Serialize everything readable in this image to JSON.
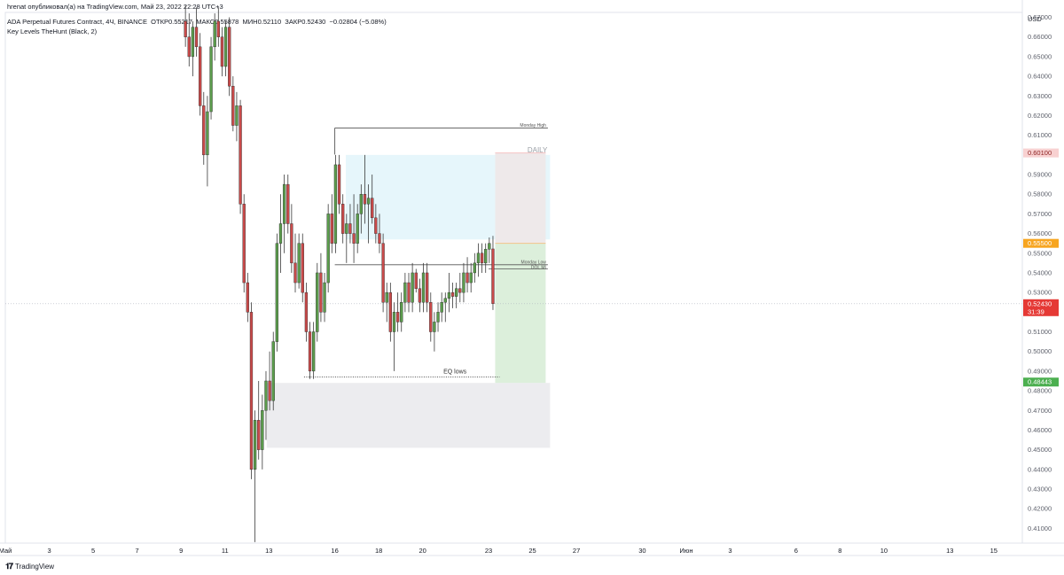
{
  "header": {
    "publisher_line": "hrenat опубликовал(а) на TradingView.com, Май 23, 2022 22:28 UTC+3",
    "symbol_line": "ADA Perpetual Futures Contract, 4Ч, BINANCE",
    "open_label": "ОТКР",
    "open_value": "0.55217",
    "high_label": "МАКС",
    "high_value": "0.55878",
    "low_label": "МИН",
    "low_value": "0.52110",
    "close_label": "ЗАКР",
    "close_value": "0.52430",
    "change": "−0.02804 (−5.08%)",
    "indicator_line": "Key Levels TheHunt (Black, 2)"
  },
  "footer": {
    "brand": "TradingView"
  },
  "colors": {
    "up": "#5b9c4c",
    "down": "#c94a4a",
    "wick": "#3a3a3a",
    "daily_zone": "#e6f6fb",
    "demand_zone": "#ececef",
    "target_zone": "#dcefdb",
    "stop_zone": "#eee9ea",
    "last_price_bg": "#e53935",
    "orange_tag": "#f7a520",
    "green_tag": "#4caf50",
    "pink_tag": "#f8d1d1"
  },
  "chart_data": {
    "type": "candlestick",
    "timeframe": "4Ч",
    "currency": "USD",
    "ylim": [
      0.4025,
      0.6725
    ],
    "y_ticks": [
      "0.67000",
      "0.66000",
      "0.65000",
      "0.64000",
      "0.63000",
      "0.62000",
      "0.61000",
      "0.60000",
      "0.59000",
      "0.58000",
      "0.57000",
      "0.56000",
      "0.55000",
      "0.54000",
      "0.53000",
      "0.52000",
      "0.51000",
      "0.50000",
      "0.49000",
      "0.48000",
      "0.47000",
      "0.46000",
      "0.45000",
      "0.44000",
      "0.43000",
      "0.42000",
      "0.41000"
    ],
    "x_ticks": [
      {
        "label": "Май",
        "day": 1
      },
      {
        "label": "3",
        "day": 3
      },
      {
        "label": "5",
        "day": 5
      },
      {
        "label": "7",
        "day": 7
      },
      {
        "label": "9",
        "day": 9
      },
      {
        "label": "11",
        "day": 11
      },
      {
        "label": "13",
        "day": 13
      },
      {
        "label": "16",
        "day": 16
      },
      {
        "label": "18",
        "day": 18
      },
      {
        "label": "20",
        "day": 20
      },
      {
        "label": "23",
        "day": 23
      },
      {
        "label": "25",
        "day": 25
      },
      {
        "label": "27",
        "day": 27
      },
      {
        "label": "30",
        "day": 30
      },
      {
        "label": "Июн",
        "day": 32
      },
      {
        "label": "3",
        "day": 34
      },
      {
        "label": "6",
        "day": 37
      },
      {
        "label": "8",
        "day": 39
      },
      {
        "label": "10",
        "day": 41
      },
      {
        "label": "13",
        "day": 44
      },
      {
        "label": "15",
        "day": 46
      }
    ],
    "x_range_days": [
      1,
      47.3
    ],
    "candles": [
      {
        "d": 9.2,
        "o": 0.668,
        "h": 0.676,
        "l": 0.655,
        "c": 0.66
      },
      {
        "d": 9.367,
        "o": 0.66,
        "h": 0.672,
        "l": 0.645,
        "c": 0.65
      },
      {
        "d": 9.533,
        "o": 0.65,
        "h": 0.668,
        "l": 0.64,
        "c": 0.665
      },
      {
        "d": 9.7,
        "o": 0.665,
        "h": 0.675,
        "l": 0.65,
        "c": 0.655
      },
      {
        "d": 9.867,
        "o": 0.655,
        "h": 0.662,
        "l": 0.62,
        "c": 0.625
      },
      {
        "d": 10.033,
        "o": 0.625,
        "h": 0.632,
        "l": 0.595,
        "c": 0.6
      },
      {
        "d": 10.2,
        "o": 0.6,
        "h": 0.63,
        "l": 0.584,
        "c": 0.622
      },
      {
        "d": 10.367,
        "o": 0.622,
        "h": 0.66,
        "l": 0.618,
        "c": 0.655
      },
      {
        "d": 10.533,
        "o": 0.655,
        "h": 0.672,
        "l": 0.648,
        "c": 0.668
      },
      {
        "d": 10.7,
        "o": 0.668,
        "h": 0.675,
        "l": 0.655,
        "c": 0.66
      },
      {
        "d": 10.867,
        "o": 0.66,
        "h": 0.665,
        "l": 0.64,
        "c": 0.645
      },
      {
        "d": 11.033,
        "o": 0.645,
        "h": 0.668,
        "l": 0.64,
        "c": 0.665
      },
      {
        "d": 11.2,
        "o": 0.665,
        "h": 0.67,
        "l": 0.63,
        "c": 0.635
      },
      {
        "d": 11.367,
        "o": 0.635,
        "h": 0.64,
        "l": 0.612,
        "c": 0.615
      },
      {
        "d": 11.533,
        "o": 0.615,
        "h": 0.632,
        "l": 0.607,
        "c": 0.625
      },
      {
        "d": 11.7,
        "o": 0.625,
        "h": 0.628,
        "l": 0.57,
        "c": 0.575
      },
      {
        "d": 11.867,
        "o": 0.575,
        "h": 0.58,
        "l": 0.53,
        "c": 0.535
      },
      {
        "d": 12.033,
        "o": 0.535,
        "h": 0.54,
        "l": 0.515,
        "c": 0.52
      },
      {
        "d": 12.2,
        "o": 0.52,
        "h": 0.525,
        "l": 0.435,
        "c": 0.44
      },
      {
        "d": 12.367,
        "o": 0.44,
        "h": 0.47,
        "l": 0.403,
        "c": 0.465
      },
      {
        "d": 12.533,
        "o": 0.465,
        "h": 0.485,
        "l": 0.445,
        "c": 0.45
      },
      {
        "d": 12.7,
        "o": 0.45,
        "h": 0.478,
        "l": 0.44,
        "c": 0.47
      },
      {
        "d": 12.867,
        "o": 0.47,
        "h": 0.49,
        "l": 0.455,
        "c": 0.485
      },
      {
        "d": 13.033,
        "o": 0.485,
        "h": 0.5,
        "l": 0.47,
        "c": 0.475
      },
      {
        "d": 13.2,
        "o": 0.475,
        "h": 0.51,
        "l": 0.47,
        "c": 0.505
      },
      {
        "d": 13.367,
        "o": 0.505,
        "h": 0.56,
        "l": 0.5,
        "c": 0.555
      },
      {
        "d": 13.533,
        "o": 0.555,
        "h": 0.58,
        "l": 0.54,
        "c": 0.565
      },
      {
        "d": 13.7,
        "o": 0.565,
        "h": 0.59,
        "l": 0.55,
        "c": 0.585
      },
      {
        "d": 13.867,
        "o": 0.585,
        "h": 0.59,
        "l": 0.56,
        "c": 0.565
      },
      {
        "d": 14.033,
        "o": 0.565,
        "h": 0.575,
        "l": 0.54,
        "c": 0.545
      },
      {
        "d": 14.2,
        "o": 0.545,
        "h": 0.56,
        "l": 0.53,
        "c": 0.535
      },
      {
        "d": 14.367,
        "o": 0.535,
        "h": 0.56,
        "l": 0.532,
        "c": 0.555
      },
      {
        "d": 14.533,
        "o": 0.555,
        "h": 0.56,
        "l": 0.525,
        "c": 0.53
      },
      {
        "d": 14.7,
        "o": 0.53,
        "h": 0.535,
        "l": 0.505,
        "c": 0.51
      },
      {
        "d": 14.867,
        "o": 0.51,
        "h": 0.515,
        "l": 0.486,
        "c": 0.49
      },
      {
        "d": 15.033,
        "o": 0.49,
        "h": 0.515,
        "l": 0.486,
        "c": 0.51
      },
      {
        "d": 15.2,
        "o": 0.51,
        "h": 0.545,
        "l": 0.505,
        "c": 0.54
      },
      {
        "d": 15.367,
        "o": 0.54,
        "h": 0.55,
        "l": 0.515,
        "c": 0.52
      },
      {
        "d": 15.533,
        "o": 0.52,
        "h": 0.54,
        "l": 0.515,
        "c": 0.535
      },
      {
        "d": 15.7,
        "o": 0.535,
        "h": 0.575,
        "l": 0.53,
        "c": 0.57
      },
      {
        "d": 15.867,
        "o": 0.57,
        "h": 0.58,
        "l": 0.55,
        "c": 0.555
      },
      {
        "d": 16.033,
        "o": 0.555,
        "h": 0.6,
        "l": 0.55,
        "c": 0.595
      },
      {
        "d": 16.2,
        "o": 0.595,
        "h": 0.6,
        "l": 0.57,
        "c": 0.575
      },
      {
        "d": 16.367,
        "o": 0.575,
        "h": 0.58,
        "l": 0.555,
        "c": 0.56
      },
      {
        "d": 16.533,
        "o": 0.56,
        "h": 0.57,
        "l": 0.545,
        "c": 0.565
      },
      {
        "d": 16.7,
        "o": 0.565,
        "h": 0.575,
        "l": 0.555,
        "c": 0.56
      },
      {
        "d": 16.867,
        "o": 0.56,
        "h": 0.58,
        "l": 0.545,
        "c": 0.555
      },
      {
        "d": 17.033,
        "o": 0.555,
        "h": 0.575,
        "l": 0.55,
        "c": 0.57
      },
      {
        "d": 17.2,
        "o": 0.57,
        "h": 0.585,
        "l": 0.56,
        "c": 0.58
      },
      {
        "d": 17.367,
        "o": 0.58,
        "h": 0.6,
        "l": 0.565,
        "c": 0.575
      },
      {
        "d": 17.533,
        "o": 0.575,
        "h": 0.585,
        "l": 0.555,
        "c": 0.578
      },
      {
        "d": 17.7,
        "o": 0.578,
        "h": 0.59,
        "l": 0.565,
        "c": 0.568
      },
      {
        "d": 17.867,
        "o": 0.568,
        "h": 0.575,
        "l": 0.555,
        "c": 0.56
      },
      {
        "d": 18.033,
        "o": 0.56,
        "h": 0.57,
        "l": 0.55,
        "c": 0.555
      },
      {
        "d": 18.2,
        "o": 0.555,
        "h": 0.56,
        "l": 0.52,
        "c": 0.525
      },
      {
        "d": 18.367,
        "o": 0.525,
        "h": 0.535,
        "l": 0.515,
        "c": 0.53
      },
      {
        "d": 18.533,
        "o": 0.53,
        "h": 0.535,
        "l": 0.505,
        "c": 0.51
      },
      {
        "d": 18.7,
        "o": 0.51,
        "h": 0.525,
        "l": 0.49,
        "c": 0.52
      },
      {
        "d": 18.867,
        "o": 0.52,
        "h": 0.53,
        "l": 0.51,
        "c": 0.515
      },
      {
        "d": 19.033,
        "o": 0.515,
        "h": 0.53,
        "l": 0.51,
        "c": 0.525
      },
      {
        "d": 19.2,
        "o": 0.525,
        "h": 0.54,
        "l": 0.52,
        "c": 0.535
      },
      {
        "d": 19.367,
        "o": 0.535,
        "h": 0.54,
        "l": 0.52,
        "c": 0.525
      },
      {
        "d": 19.533,
        "o": 0.525,
        "h": 0.545,
        "l": 0.52,
        "c": 0.54
      },
      {
        "d": 19.7,
        "o": 0.54,
        "h": 0.542,
        "l": 0.53,
        "c": 0.532
      },
      {
        "d": 19.867,
        "o": 0.532,
        "h": 0.537,
        "l": 0.52,
        "c": 0.525
      },
      {
        "d": 20.033,
        "o": 0.525,
        "h": 0.545,
        "l": 0.52,
        "c": 0.54
      },
      {
        "d": 20.2,
        "o": 0.54,
        "h": 0.545,
        "l": 0.52,
        "c": 0.525
      },
      {
        "d": 20.367,
        "o": 0.525,
        "h": 0.53,
        "l": 0.505,
        "c": 0.51
      },
      {
        "d": 20.533,
        "o": 0.51,
        "h": 0.52,
        "l": 0.5,
        "c": 0.515
      },
      {
        "d": 20.7,
        "o": 0.515,
        "h": 0.525,
        "l": 0.51,
        "c": 0.52
      },
      {
        "d": 20.867,
        "o": 0.52,
        "h": 0.53,
        "l": 0.515,
        "c": 0.525
      },
      {
        "d": 21.033,
        "o": 0.525,
        "h": 0.53,
        "l": 0.515,
        "c": 0.527
      },
      {
        "d": 21.2,
        "o": 0.527,
        "h": 0.54,
        "l": 0.52,
        "c": 0.53
      },
      {
        "d": 21.367,
        "o": 0.53,
        "h": 0.535,
        "l": 0.522,
        "c": 0.528
      },
      {
        "d": 21.533,
        "o": 0.528,
        "h": 0.535,
        "l": 0.522,
        "c": 0.532
      },
      {
        "d": 21.7,
        "o": 0.532,
        "h": 0.54,
        "l": 0.525,
        "c": 0.53
      },
      {
        "d": 21.867,
        "o": 0.53,
        "h": 0.545,
        "l": 0.525,
        "c": 0.54
      },
      {
        "d": 22.033,
        "o": 0.54,
        "h": 0.548,
        "l": 0.53,
        "c": 0.535
      },
      {
        "d": 22.2,
        "o": 0.535,
        "h": 0.545,
        "l": 0.53,
        "c": 0.54
      },
      {
        "d": 22.367,
        "o": 0.54,
        "h": 0.55,
        "l": 0.535,
        "c": 0.545
      },
      {
        "d": 22.533,
        "o": 0.545,
        "h": 0.555,
        "l": 0.538,
        "c": 0.55
      },
      {
        "d": 22.7,
        "o": 0.55,
        "h": 0.555,
        "l": 0.54,
        "c": 0.545
      },
      {
        "d": 22.867,
        "o": 0.545,
        "h": 0.555,
        "l": 0.54,
        "c": 0.552
      },
      {
        "d": 23.033,
        "o": 0.552,
        "h": 0.558,
        "l": 0.545,
        "c": 0.555
      },
      {
        "d": 23.2,
        "o": 0.55217,
        "h": 0.55878,
        "l": 0.5211,
        "c": 0.5243
      }
    ],
    "current_price": {
      "value": "0.52430",
      "countdown": "31:39"
    },
    "price_tags": [
      {
        "value": "0.60100",
        "style": "pink"
      },
      {
        "value": "0.55500",
        "style": "orange"
      },
      {
        "value": "0.48443",
        "style": "green"
      }
    ],
    "zones": [
      {
        "name": "daily-zone",
        "label": "DAILY",
        "x1": 16.5,
        "x2": 25.8,
        "y_top": 0.6,
        "y_bottom": 0.557
      },
      {
        "name": "demand-zone",
        "x1": 12.9,
        "x2": 25.8,
        "y_top": 0.484,
        "y_bottom": 0.451
      },
      {
        "name": "stop-zone",
        "x1": 23.3,
        "x2": 25.6,
        "y_top": 0.601,
        "y_bottom": 0.555
      },
      {
        "name": "target-zone",
        "x1": 23.3,
        "x2": 25.6,
        "y_top": 0.555,
        "y_bottom": 0.484
      }
    ],
    "annotations": [
      {
        "name": "monday-high",
        "label": "Monday High",
        "value": 0.6137,
        "x1": 16.0,
        "x2": 25.7
      },
      {
        "name": "monday-low",
        "label": "Monday Low",
        "value": 0.5441,
        "x1": 16.0,
        "x2": 25.7
      },
      {
        "name": "eq-lows",
        "label": "EQ lows",
        "value": 0.487,
        "x1": 14.6,
        "x2": 23.5
      },
      {
        "name": "dol",
        "label": "DOL MI",
        "value": 0.542,
        "x1": 23.0,
        "x2": 25.7
      }
    ]
  }
}
